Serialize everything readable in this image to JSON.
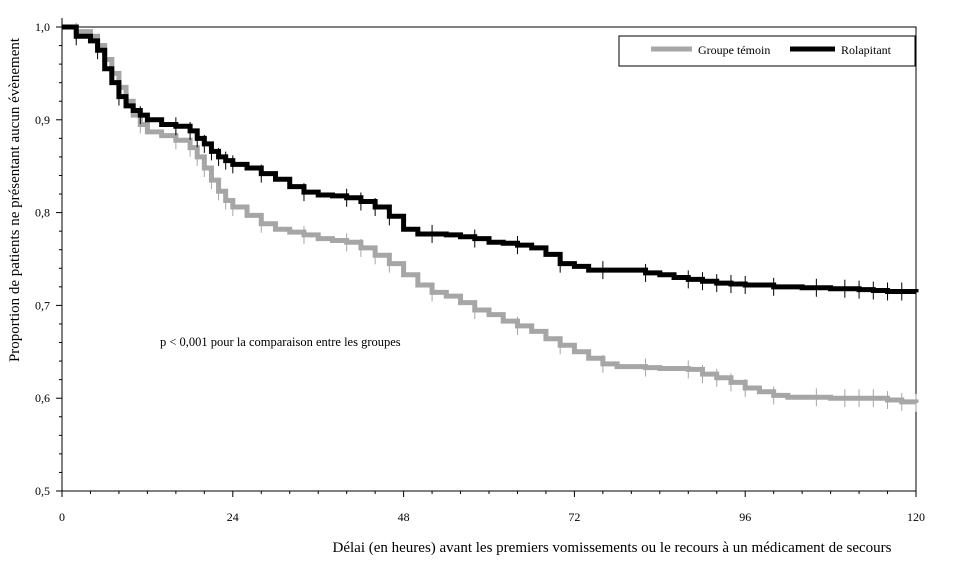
{
  "chart_data": {
    "type": "line",
    "subtype": "kaplan-meier survival curve (step function)",
    "xlabel": "Délai (en heures) avant les premiers vomissements ou le recours à un médicament de secours",
    "ylabel": "Proportion de patients ne présentant aucun évènement",
    "xlim": [
      0,
      120
    ],
    "ylim": [
      0.5,
      1.0
    ],
    "x_ticks": [
      0,
      24,
      48,
      72,
      96,
      120
    ],
    "x_tick_labels": [
      "0",
      "24",
      "48",
      "72",
      "96",
      "120"
    ],
    "y_ticks": [
      0.5,
      0.6,
      0.7,
      0.8,
      0.9,
      1.0
    ],
    "y_tick_labels": [
      "0,5",
      "0,6",
      "0,7",
      "0,8",
      "0,9",
      "1,0"
    ],
    "grid": false,
    "legend_position": "top-right",
    "annotation": "p < 0,001 pour la comparaison entre les groupes",
    "series": [
      {
        "name": "Groupe témoin",
        "color": "#a6a6a6",
        "x": [
          0,
          2,
          4,
          5,
          6,
          7,
          8,
          9,
          10,
          11,
          12,
          14,
          16,
          18,
          19,
          20,
          21,
          22,
          23,
          24,
          26,
          28,
          30,
          32,
          34,
          36,
          38,
          40,
          42,
          44,
          46,
          48,
          50,
          52,
          54,
          56,
          58,
          60,
          62,
          64,
          66,
          68,
          70,
          72,
          74,
          76,
          78,
          80,
          82,
          84,
          86,
          88,
          90,
          92,
          94,
          96,
          98,
          100,
          102,
          104,
          106,
          108,
          110,
          112,
          114,
          116,
          118,
          120
        ],
        "y": [
          1.0,
          0.995,
          0.99,
          0.98,
          0.965,
          0.95,
          0.935,
          0.92,
          0.905,
          0.895,
          0.887,
          0.883,
          0.878,
          0.87,
          0.86,
          0.848,
          0.835,
          0.823,
          0.813,
          0.806,
          0.797,
          0.788,
          0.782,
          0.779,
          0.776,
          0.772,
          0.77,
          0.768,
          0.762,
          0.754,
          0.745,
          0.733,
          0.722,
          0.714,
          0.71,
          0.703,
          0.695,
          0.69,
          0.683,
          0.678,
          0.672,
          0.664,
          0.657,
          0.65,
          0.643,
          0.637,
          0.634,
          0.634,
          0.633,
          0.632,
          0.632,
          0.631,
          0.626,
          0.622,
          0.617,
          0.611,
          0.607,
          0.603,
          0.601,
          0.601,
          0.601,
          0.6,
          0.6,
          0.6,
          0.6,
          0.598,
          0.596,
          0.595
        ]
      },
      {
        "name": "Rolapitant",
        "color": "#000000",
        "x": [
          0,
          2,
          4,
          5,
          6,
          7,
          8,
          9,
          10,
          11,
          12,
          14,
          16,
          18,
          19,
          20,
          21,
          22,
          23,
          24,
          26,
          28,
          30,
          32,
          34,
          36,
          38,
          40,
          42,
          44,
          46,
          48,
          50,
          52,
          54,
          56,
          58,
          60,
          62,
          64,
          66,
          68,
          70,
          72,
          74,
          76,
          78,
          80,
          82,
          84,
          86,
          88,
          90,
          92,
          94,
          96,
          98,
          100,
          102,
          104,
          106,
          108,
          110,
          112,
          114,
          116,
          118,
          120
        ],
        "y": [
          1.0,
          0.99,
          0.985,
          0.975,
          0.955,
          0.94,
          0.925,
          0.915,
          0.91,
          0.905,
          0.9,
          0.895,
          0.893,
          0.888,
          0.88,
          0.874,
          0.866,
          0.86,
          0.856,
          0.852,
          0.848,
          0.842,
          0.836,
          0.828,
          0.822,
          0.819,
          0.818,
          0.816,
          0.812,
          0.806,
          0.796,
          0.782,
          0.777,
          0.777,
          0.776,
          0.774,
          0.772,
          0.768,
          0.767,
          0.765,
          0.762,
          0.755,
          0.745,
          0.742,
          0.738,
          0.738,
          0.738,
          0.738,
          0.735,
          0.733,
          0.73,
          0.728,
          0.726,
          0.724,
          0.723,
          0.722,
          0.722,
          0.72,
          0.72,
          0.719,
          0.719,
          0.718,
          0.718,
          0.717,
          0.716,
          0.715,
          0.715,
          0.714
        ]
      }
    ]
  }
}
